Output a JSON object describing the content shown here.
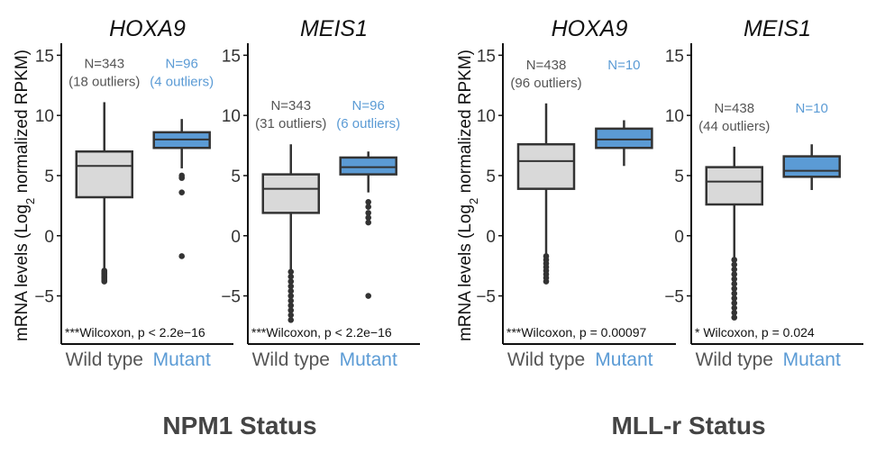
{
  "colors": {
    "wild_type_fill": "#d9d9d9",
    "mutant_fill": "#5b9bd5",
    "wild_type_text": "#555555",
    "mutant_text": "#5b9bd5",
    "axis": "#111111",
    "box_stroke": "#333333"
  },
  "groups": [
    {
      "title": "NPM1 Status"
    },
    {
      "title": "MLL-r Status"
    }
  ],
  "chart_data": [
    {
      "type": "box",
      "group": "NPM1 Status",
      "title": "HOXA9",
      "ylabel": "mRNA levels (Log2 normalized RPKM)",
      "ylabel_prefix": "mRNA levels (Log",
      "ylabel_sub": "2",
      "ylabel_suffix": " normalized RPKM)",
      "ylim": [
        -9,
        16
      ],
      "yticks": [
        -5,
        0,
        5,
        10,
        15
      ],
      "ytick_labels": [
        "−5",
        "0",
        "5",
        "10",
        "15"
      ],
      "categories": [
        "Wild type",
        "Mutant"
      ],
      "boxes": [
        {
          "name": "Wild type",
          "q1": 3.2,
          "median": 5.8,
          "q3": 7.0,
          "whisker_low": -2.9,
          "whisker_high": 11.1,
          "outliers": [
            -2.9,
            -3.0,
            -3.1,
            -3.2,
            -3.3,
            -3.4,
            -3.5,
            -3.6,
            -3.7,
            -3.8
          ],
          "n_label": "N=343",
          "outlier_label": "(18 outliers)"
        },
        {
          "name": "Mutant",
          "q1": 7.3,
          "median": 8.0,
          "q3": 8.6,
          "whisker_low": 5.6,
          "whisker_high": 9.7,
          "outliers": [
            4.8,
            5.0,
            3.6,
            -1.7
          ],
          "n_label": "N=96",
          "outlier_label": "(4 outliers)"
        }
      ],
      "annotation": "***Wilcoxon, p < 2.2e−16"
    },
    {
      "type": "box",
      "group": "NPM1 Status",
      "title": "MEIS1",
      "ylim": [
        -9,
        16
      ],
      "yticks": [
        -5,
        0,
        5,
        10,
        15
      ],
      "ytick_labels": [
        "−5",
        "0",
        "5",
        "10",
        "15"
      ],
      "categories": [
        "Wild type",
        "Mutant"
      ],
      "boxes": [
        {
          "name": "Wild type",
          "q1": 1.9,
          "median": 3.9,
          "q3": 5.1,
          "whisker_low": -2.8,
          "whisker_high": 7.6,
          "outliers": [
            -3.0,
            -3.4,
            -3.8,
            -4.2,
            -4.6,
            -5.0,
            -5.4,
            -5.8,
            -6.2,
            -6.6,
            -7.0
          ],
          "n_label": "N=343",
          "outlier_label": "(31 outliers)"
        },
        {
          "name": "Mutant",
          "q1": 5.1,
          "median": 5.7,
          "q3": 6.5,
          "whisker_low": 3.6,
          "whisker_high": 7.0,
          "outliers": [
            2.8,
            2.4,
            1.9,
            1.5,
            1.1,
            -5.0
          ],
          "n_label": "N=96",
          "outlier_label": "(6 outliers)"
        }
      ],
      "annotation": "***Wilcoxon, p < 2.2e−16"
    },
    {
      "type": "box",
      "group": "MLL-r Status",
      "title": "HOXA9",
      "ylabel": "mRNA levels (Log2 normalized RPKM)",
      "ylabel_prefix": "mRNA levels (Log",
      "ylabel_sub": "2",
      "ylabel_suffix": " normalized RPKM)",
      "ylim": [
        -9,
        16
      ],
      "yticks": [
        -5,
        0,
        5,
        10,
        15
      ],
      "ytick_labels": [
        "−5",
        "0",
        "5",
        "10",
        "15"
      ],
      "categories": [
        "Wild type",
        "Mutant"
      ],
      "boxes": [
        {
          "name": "Wild type",
          "q1": 3.9,
          "median": 6.2,
          "q3": 7.6,
          "whisker_low": -1.5,
          "whisker_high": 11.0,
          "outliers": [
            -1.7,
            -2.0,
            -2.3,
            -2.6,
            -2.9,
            -3.2,
            -3.5,
            -3.8
          ],
          "n_label": "N=438",
          "outlier_label": "(96 outliers)"
        },
        {
          "name": "Mutant",
          "q1": 7.3,
          "median": 8.0,
          "q3": 8.9,
          "whisker_low": 5.8,
          "whisker_high": 9.6,
          "outliers": [],
          "n_label": "N=10",
          "outlier_label": ""
        }
      ],
      "annotation": "***Wilcoxon, p = 0.00097"
    },
    {
      "type": "box",
      "group": "MLL-r Status",
      "title": "MEIS1",
      "ylim": [
        -9,
        16
      ],
      "yticks": [
        -5,
        0,
        5,
        10,
        15
      ],
      "ytick_labels": [
        "−5",
        "0",
        "5",
        "10",
        "15"
      ],
      "categories": [
        "Wild type",
        "Mutant"
      ],
      "boxes": [
        {
          "name": "Wild type",
          "q1": 2.6,
          "median": 4.5,
          "q3": 5.7,
          "whisker_low": -1.8,
          "whisker_high": 7.4,
          "outliers": [
            -2.0,
            -2.4,
            -2.8,
            -3.2,
            -3.6,
            -4.0,
            -4.4,
            -4.8,
            -5.2,
            -5.6,
            -6.0,
            -6.4,
            -6.8
          ],
          "n_label": "N=438",
          "outlier_label": "(44 outliers)"
        },
        {
          "name": "Mutant",
          "q1": 4.9,
          "median": 5.4,
          "q3": 6.6,
          "whisker_low": 3.8,
          "whisker_high": 7.6,
          "outliers": [],
          "n_label": "N=10",
          "outlier_label": ""
        }
      ],
      "annotation": "* Wilcoxon, p = 0.024"
    }
  ]
}
